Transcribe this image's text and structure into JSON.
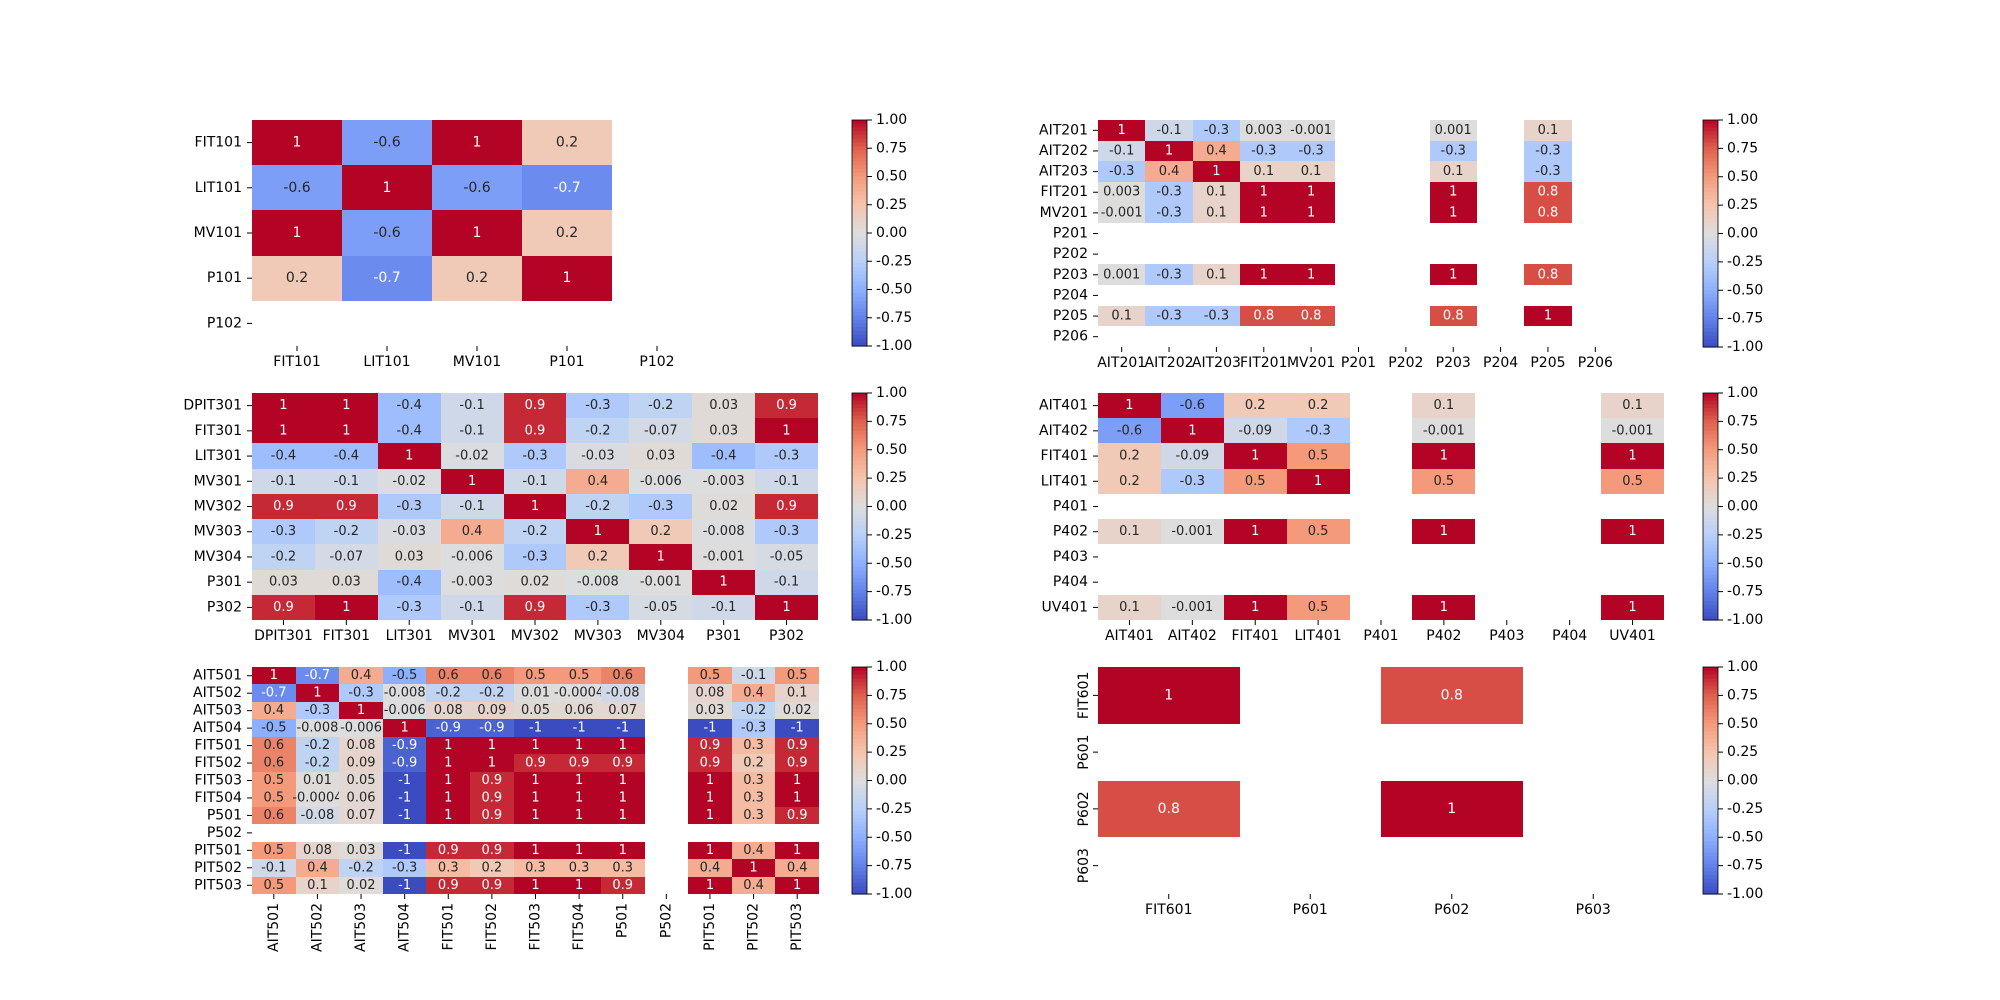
{
  "chart_data": [
    {
      "type": "heatmap",
      "labels": [
        "FIT101",
        "LIT101",
        "MV101",
        "P101",
        "P102"
      ],
      "values": [
        [
          "1",
          "-0.6",
          "1",
          "0.2",
          null
        ],
        [
          "-0.6",
          "1",
          "-0.6",
          "-0.7",
          null
        ],
        [
          "1",
          "-0.6",
          "1",
          "0.2",
          null
        ],
        [
          "0.2",
          "-0.7",
          "0.2",
          "1",
          null
        ],
        [
          null,
          null,
          null,
          null,
          null
        ]
      ],
      "colorbar": {
        "min": -1.0,
        "max": 1.0,
        "ticks": [
          "1.00",
          "0.75",
          "0.50",
          "0.25",
          "0.00",
          "-0.25",
          "-0.50",
          "-0.75",
          "-1.00"
        ]
      },
      "colormap": "coolwarm"
    },
    {
      "type": "heatmap",
      "labels": [
        "AIT201",
        "AIT202",
        "AIT203",
        "FIT201",
        "MV201",
        "P201",
        "P202",
        "P203",
        "P204",
        "P205",
        "P206"
      ],
      "values": [
        [
          "1",
          "-0.1",
          "-0.3",
          "0.003",
          "-0.001",
          null,
          null,
          "0.001",
          null,
          "0.1",
          null
        ],
        [
          "-0.1",
          "1",
          "0.4",
          "-0.3",
          "-0.3",
          null,
          null,
          "-0.3",
          null,
          "-0.3",
          null
        ],
        [
          "-0.3",
          "0.4",
          "1",
          "0.1",
          "0.1",
          null,
          null,
          "0.1",
          null,
          "-0.3",
          null
        ],
        [
          "0.003",
          "-0.3",
          "0.1",
          "1",
          "1",
          null,
          null,
          "1",
          null,
          "0.8",
          null
        ],
        [
          "-0.001",
          "-0.3",
          "0.1",
          "1",
          "1",
          null,
          null,
          "1",
          null,
          "0.8",
          null
        ],
        [
          null,
          null,
          null,
          null,
          null,
          null,
          null,
          null,
          null,
          null,
          null
        ],
        [
          null,
          null,
          null,
          null,
          null,
          null,
          null,
          null,
          null,
          null,
          null
        ],
        [
          "0.001",
          "-0.3",
          "0.1",
          "1",
          "1",
          null,
          null,
          "1",
          null,
          "0.8",
          null
        ],
        [
          null,
          null,
          null,
          null,
          null,
          null,
          null,
          null,
          null,
          null,
          null
        ],
        [
          "0.1",
          "-0.3",
          "-0.3",
          "0.8",
          "0.8",
          null,
          null,
          "0.8",
          null,
          "1",
          null
        ],
        [
          null,
          null,
          null,
          null,
          null,
          null,
          null,
          null,
          null,
          null,
          null
        ]
      ],
      "colorbar": {
        "min": -1.0,
        "max": 1.0,
        "ticks": [
          "1.00",
          "0.75",
          "0.50",
          "0.25",
          "0.00",
          "-0.25",
          "-0.50",
          "-0.75",
          "-1.00"
        ]
      },
      "colormap": "coolwarm"
    },
    {
      "type": "heatmap",
      "labels": [
        "DPIT301",
        "FIT301",
        "LIT301",
        "MV301",
        "MV302",
        "MV303",
        "MV304",
        "P301",
        "P302"
      ],
      "values": [
        [
          "1",
          "1",
          "-0.4",
          "-0.1",
          "0.9",
          "-0.3",
          "-0.2",
          "0.03",
          "0.9"
        ],
        [
          "1",
          "1",
          "-0.4",
          "-0.1",
          "0.9",
          "-0.2",
          "-0.07",
          "0.03",
          "1"
        ],
        [
          "-0.4",
          "-0.4",
          "1",
          "-0.02",
          "-0.3",
          "-0.03",
          "0.03",
          "-0.4",
          "-0.3"
        ],
        [
          "-0.1",
          "-0.1",
          "-0.02",
          "1",
          "-0.1",
          "0.4",
          "-0.006",
          "-0.003",
          "-0.1"
        ],
        [
          "0.9",
          "0.9",
          "-0.3",
          "-0.1",
          "1",
          "-0.2",
          "-0.3",
          "0.02",
          "0.9"
        ],
        [
          "-0.3",
          "-0.2",
          "-0.03",
          "0.4",
          "-0.2",
          "1",
          "0.2",
          "-0.008",
          "-0.3"
        ],
        [
          "-0.2",
          "-0.07",
          "0.03",
          "-0.006",
          "-0.3",
          "0.2",
          "1",
          "-0.001",
          "-0.05"
        ],
        [
          "0.03",
          "0.03",
          "-0.4",
          "-0.003",
          "0.02",
          "-0.008",
          "-0.001",
          "1",
          "-0.1"
        ],
        [
          "0.9",
          "1",
          "-0.3",
          "-0.1",
          "0.9",
          "-0.3",
          "-0.05",
          "-0.1",
          "1"
        ]
      ],
      "colorbar": {
        "min": -1.0,
        "max": 1.0,
        "ticks": [
          "1.00",
          "0.75",
          "0.50",
          "0.25",
          "0.00",
          "-0.25",
          "-0.50",
          "-0.75",
          "-1.00"
        ]
      },
      "colormap": "coolwarm"
    },
    {
      "type": "heatmap",
      "labels": [
        "AIT401",
        "AIT402",
        "FIT401",
        "LIT401",
        "P401",
        "P402",
        "P403",
        "P404",
        "UV401"
      ],
      "values": [
        [
          "1",
          "-0.6",
          "0.2",
          "0.2",
          null,
          "0.1",
          null,
          null,
          "0.1"
        ],
        [
          "-0.6",
          "1",
          "-0.09",
          "-0.3",
          null,
          "-0.001",
          null,
          null,
          "-0.001"
        ],
        [
          "0.2",
          "-0.09",
          "1",
          "0.5",
          null,
          "1",
          null,
          null,
          "1"
        ],
        [
          "0.2",
          "-0.3",
          "0.5",
          "1",
          null,
          "0.5",
          null,
          null,
          "0.5"
        ],
        [
          null,
          null,
          null,
          null,
          null,
          null,
          null,
          null,
          null
        ],
        [
          "0.1",
          "-0.001",
          "1",
          "0.5",
          null,
          "1",
          null,
          null,
          "1"
        ],
        [
          null,
          null,
          null,
          null,
          null,
          null,
          null,
          null,
          null
        ],
        [
          null,
          null,
          null,
          null,
          null,
          null,
          null,
          null,
          null
        ],
        [
          "0.1",
          "-0.001",
          "1",
          "0.5",
          null,
          "1",
          null,
          null,
          "1"
        ]
      ],
      "colorbar": {
        "min": -1.0,
        "max": 1.0,
        "ticks": [
          "1.00",
          "0.75",
          "0.50",
          "0.25",
          "0.00",
          "-0.25",
          "-0.50",
          "-0.75",
          "-1.00"
        ]
      },
      "colormap": "coolwarm"
    },
    {
      "type": "heatmap",
      "labels": [
        "AIT501",
        "AIT502",
        "AIT503",
        "AIT504",
        "FIT501",
        "FIT502",
        "FIT503",
        "FIT504",
        "P501",
        "P502",
        "PIT501",
        "PIT502",
        "PIT503"
      ],
      "values": [
        [
          "1",
          "-0.7",
          "0.4",
          "-0.5",
          "0.6",
          "0.6",
          "0.5",
          "0.5",
          "0.6",
          null,
          "0.5",
          "-0.1",
          "0.5"
        ],
        [
          "-0.7",
          "1",
          "-0.3",
          "-0.008",
          "-0.2",
          "-0.2",
          "0.01",
          "-0.0004",
          "-0.08",
          null,
          "0.08",
          "0.4",
          "0.1"
        ],
        [
          "0.4",
          "-0.3",
          "1",
          "-0.006",
          "0.08",
          "0.09",
          "0.05",
          "0.06",
          "0.07",
          null,
          "0.03",
          "-0.2",
          "0.02"
        ],
        [
          "-0.5",
          "-0.008",
          "-0.006",
          "1",
          "-0.9",
          "-0.9",
          "-1",
          "-1",
          "-1",
          null,
          "-1",
          "-0.3",
          "-1"
        ],
        [
          "0.6",
          "-0.2",
          "0.08",
          "-0.9",
          "1",
          "1",
          "1",
          "1",
          "1",
          null,
          "0.9",
          "0.3",
          "0.9"
        ],
        [
          "0.6",
          "-0.2",
          "0.09",
          "-0.9",
          "1",
          "1",
          "0.9",
          "0.9",
          "0.9",
          null,
          "0.9",
          "0.2",
          "0.9"
        ],
        [
          "0.5",
          "0.01",
          "0.05",
          "-1",
          "1",
          "0.9",
          "1",
          "1",
          "1",
          null,
          "1",
          "0.3",
          "1"
        ],
        [
          "0.5",
          "-0.0004",
          "0.06",
          "-1",
          "1",
          "0.9",
          "1",
          "1",
          "1",
          null,
          "1",
          "0.3",
          "1"
        ],
        [
          "0.6",
          "-0.08",
          "0.07",
          "-1",
          "1",
          "0.9",
          "1",
          "1",
          "1",
          null,
          "1",
          "0.3",
          "0.9"
        ],
        [
          null,
          null,
          null,
          null,
          null,
          null,
          null,
          null,
          null,
          null,
          null,
          null,
          null
        ],
        [
          "0.5",
          "0.08",
          "0.03",
          "-1",
          "0.9",
          "0.9",
          "1",
          "1",
          "1",
          null,
          "1",
          "0.4",
          "1"
        ],
        [
          "-0.1",
          "0.4",
          "-0.2",
          "-0.3",
          "0.3",
          "0.2",
          "0.3",
          "0.3",
          "0.3",
          null,
          "0.4",
          "1",
          "0.4"
        ],
        [
          "0.5",
          "0.1",
          "0.02",
          "-1",
          "0.9",
          "0.9",
          "1",
          "1",
          "0.9",
          null,
          "1",
          "0.4",
          "1"
        ]
      ],
      "colorbar": {
        "min": -1.0,
        "max": 1.0,
        "ticks": [
          "1.00",
          "0.75",
          "0.50",
          "0.25",
          "0.00",
          "-0.25",
          "-0.50",
          "-0.75",
          "-1.00"
        ]
      },
      "colormap": "coolwarm"
    },
    {
      "type": "heatmap",
      "labels": [
        "FIT601",
        "P601",
        "P602",
        "P603"
      ],
      "values": [
        [
          "1",
          null,
          "0.8",
          null
        ],
        [
          null,
          null,
          null,
          null
        ],
        [
          "0.8",
          null,
          "1",
          null
        ],
        [
          null,
          null,
          null,
          null
        ]
      ],
      "colorbar": {
        "min": -1.0,
        "max": 1.0,
        "ticks": [
          "1.00",
          "0.75",
          "0.50",
          "0.25",
          "0.00",
          "-0.25",
          "-0.50",
          "-0.75",
          "-1.00"
        ]
      },
      "colormap": "coolwarm"
    }
  ]
}
